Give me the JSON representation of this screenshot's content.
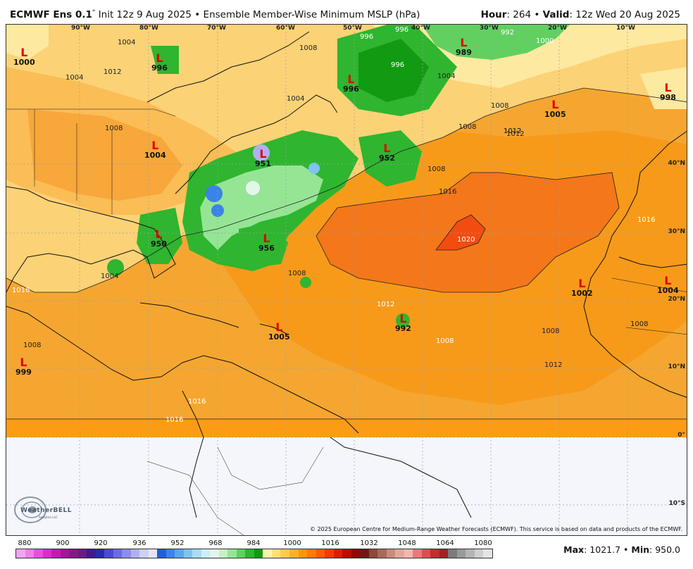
{
  "header": {
    "model": "ECMWF Ens 0.1",
    "init": "Init 12z 9 Aug 2025",
    "product": "Ensemble Member-Wise Minimum MSLP (hPa)",
    "hour_label": "Hour",
    "hour_value": "264",
    "valid_label": "Valid",
    "valid_value": "12z Wed 20 Aug 2025"
  },
  "lon_labels": [
    "90°W",
    "80°W",
    "70°W",
    "60°W",
    "50°W",
    "40°W",
    "30°W",
    "20°W",
    "10°W"
  ],
  "lat_labels": [
    "40°N",
    "30°N",
    "20°N",
    "10°N",
    "0°",
    "10°S"
  ],
  "pressure_centers": [
    {
      "mark": "L",
      "value": "1000"
    },
    {
      "mark": "L",
      "value": "996"
    },
    {
      "mark": "L",
      "value": "996"
    },
    {
      "mark": "L",
      "value": "989"
    },
    {
      "mark": "L",
      "value": "1005"
    },
    {
      "mark": "L",
      "value": "998"
    },
    {
      "mark": "L",
      "value": "1004"
    },
    {
      "mark": "L",
      "value": "951"
    },
    {
      "mark": "L",
      "value": "952"
    },
    {
      "mark": "L",
      "value": "950"
    },
    {
      "mark": "L",
      "value": "956"
    },
    {
      "mark": "L",
      "value": "1002"
    },
    {
      "mark": "L",
      "value": "1004"
    },
    {
      "mark": "L",
      "value": "1005"
    },
    {
      "mark": "L",
      "value": "992"
    },
    {
      "mark": "L",
      "value": "999"
    }
  ],
  "contour_labels": [
    "1004",
    "1012",
    "1004",
    "1008",
    "1008",
    "1004",
    "996",
    "996",
    "996",
    "992",
    "1000",
    "1004",
    "1008",
    "1008",
    "1012",
    "1016",
    "1020",
    "1008",
    "1012",
    "1016",
    "1008",
    "1008",
    "1012",
    "1004",
    "1008",
    "1016",
    "1012",
    "1008",
    "1016",
    "1016",
    "1008",
    "1012"
  ],
  "copyright": "© 2025 European Centre for Medium-Range Weather Forecasts (ECMWF). This service is based on data and products of the ECMWF.",
  "logo": {
    "name": "WeatherBELL",
    "sub": "Analytics LLC"
  },
  "colorbar": {
    "labels": [
      "880",
      "900",
      "920",
      "936",
      "952",
      "968",
      "984",
      "1000",
      "1016",
      "1032",
      "1048",
      "1064",
      "1080"
    ],
    "colors": [
      "#f4a6f0",
      "#ee7ee8",
      "#e64fdd",
      "#d92ccc",
      "#c01cb3",
      "#a1169a",
      "#831a86",
      "#6a1b83",
      "#3f1a8f",
      "#2b2aa7",
      "#4a4ad0",
      "#6b6be0",
      "#8d8de8",
      "#b0b0ef",
      "#cfcff4",
      "#e3e3f8",
      "#1f5fd6",
      "#3b83e6",
      "#5aa5ee",
      "#7fc3f2",
      "#a7dcf5",
      "#cbeef7",
      "#e2f7ec",
      "#c5f2c5",
      "#95e595",
      "#5fd15f",
      "#2fb52f",
      "#129a12",
      "#fff3a8",
      "#ffe07a",
      "#ffc94e",
      "#ffb02b",
      "#ff9413",
      "#ff7a0a",
      "#ff5a05",
      "#f23a03",
      "#d81e02",
      "#b80e02",
      "#8e0a05",
      "#6b1a12",
      "#8a4a3a",
      "#a86b5b",
      "#c88c7c",
      "#e0a89a",
      "#f0b8b0",
      "#e87a7a",
      "#d94f4f",
      "#bf2f2f",
      "#9c2424",
      "#7b7b7b",
      "#999999",
      "#b4b4b4",
      "#cfcfcf",
      "#e4e4e4"
    ]
  },
  "max_label": "Max",
  "max_value": "1021.7",
  "min_label": "Min",
  "min_value": "950.0"
}
